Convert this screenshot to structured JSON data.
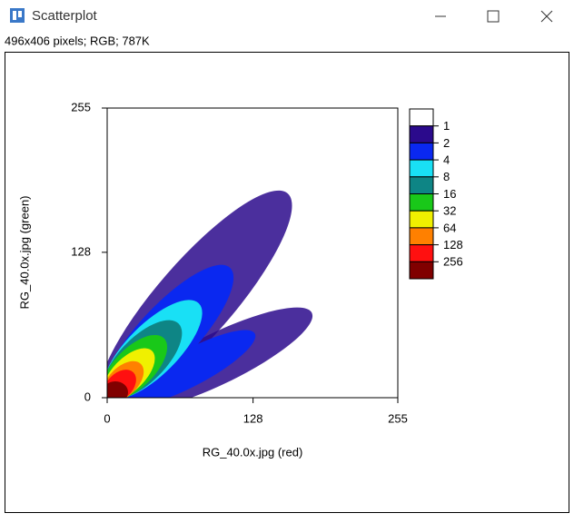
{
  "window": {
    "title": "Scatterplot",
    "info": "496x406 pixels; RGB; 787K"
  },
  "chart_data": {
    "type": "density-scatter",
    "x_label": "RG_40.0x.jpg (red)",
    "y_label": "RG_40.0x.jpg (green)",
    "xlim": [
      0,
      255
    ],
    "ylim": [
      0,
      255
    ],
    "xticks": [
      0,
      128,
      255
    ],
    "yticks": [
      0,
      128,
      255
    ],
    "color_scale": {
      "labels": [
        1,
        2,
        4,
        8,
        16,
        32,
        64,
        128,
        256
      ],
      "colors": [
        "#2b0a8c",
        "#0a28f0",
        "#19e0f5",
        "#0e8585",
        "#19c819",
        "#f0f000",
        "#ff8000",
        "#ff1010",
        "#800000"
      ]
    }
  }
}
